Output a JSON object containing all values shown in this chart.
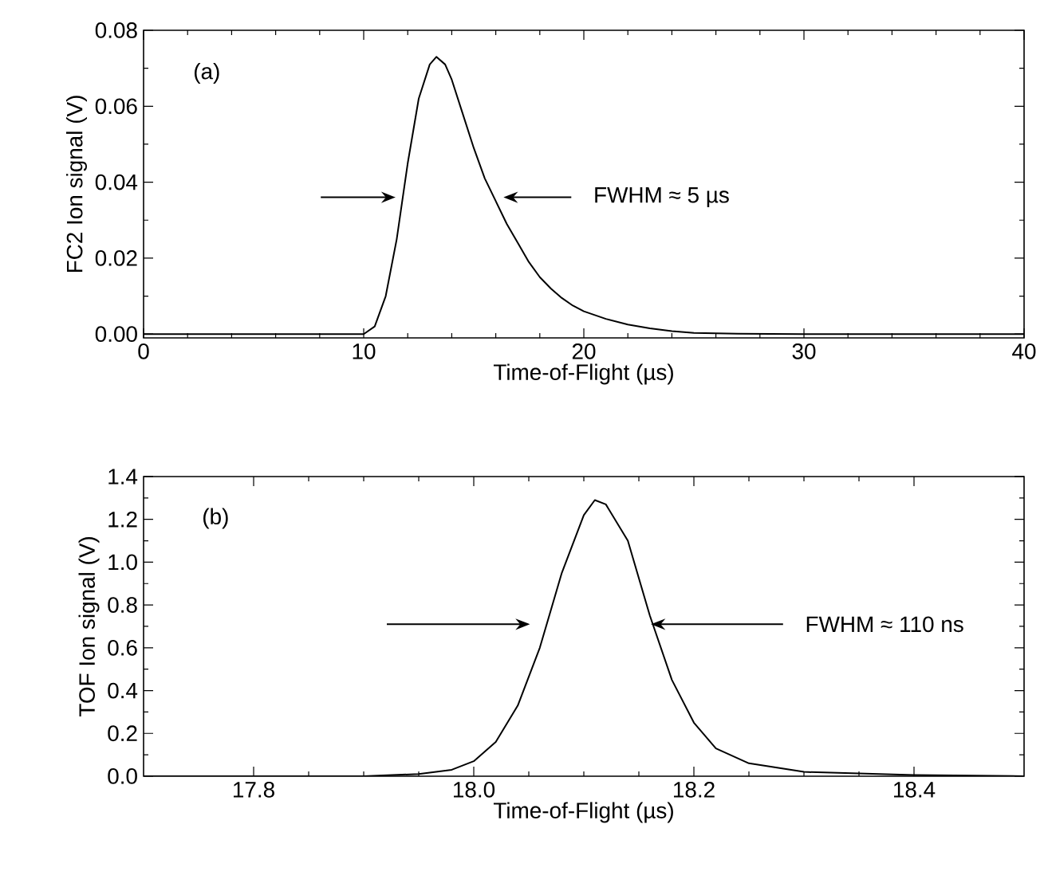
{
  "chart_data": [
    {
      "type": "line",
      "xlabel": "Time-of-Flight (µs)",
      "ylabel": "FC2 Ion signal (V)",
      "x": [
        0,
        2,
        4,
        6,
        8,
        10,
        10.5,
        11,
        11.5,
        12,
        12.5,
        13,
        13.3,
        13.7,
        14,
        14.5,
        15,
        15.5,
        16,
        16.5,
        17,
        17.5,
        18,
        18.5,
        19,
        19.5,
        20,
        21,
        22,
        23,
        24,
        25,
        27,
        30,
        35,
        40
      ],
      "series": [
        {
          "color": "#000000",
          "values": [
            0,
            0,
            0,
            0,
            0,
            0,
            0.002,
            0.01,
            0.025,
            0.045,
            0.062,
            0.071,
            0.073,
            0.071,
            0.067,
            0.058,
            0.049,
            0.041,
            0.035,
            0.029,
            0.024,
            0.019,
            0.015,
            0.012,
            0.0095,
            0.0075,
            0.006,
            0.004,
            0.0025,
            0.0015,
            0.0008,
            0.0003,
            0.0001,
            0,
            0,
            0
          ]
        }
      ],
      "xlim": [
        0,
        40
      ],
      "xticks": [
        0,
        10,
        20,
        30,
        40
      ],
      "ylim": [
        -0.001,
        0.08
      ],
      "yticks": [
        {
          "value": 0,
          "label": "0.00"
        },
        {
          "value": 0.02,
          "label": "0.02"
        },
        {
          "value": 0.04,
          "label": "0.04"
        },
        {
          "value": 0.06,
          "label": "0.06"
        },
        {
          "value": 0.08,
          "label": "0.08"
        }
      ],
      "annotations": [
        "(a)",
        "FWHM ≈ 5 µs"
      ],
      "grid": false,
      "marker": "none",
      "line_style": "solid"
    },
    {
      "type": "line",
      "xlabel": "Time-of-Flight (µs)",
      "ylabel": "TOF Ion signal (V)",
      "x": [
        17.7,
        17.8,
        17.9,
        17.95,
        17.98,
        18.0,
        18.02,
        18.04,
        18.06,
        18.08,
        18.1,
        18.11,
        18.12,
        18.14,
        18.16,
        18.18,
        18.2,
        18.22,
        18.25,
        18.3,
        18.4,
        18.5
      ],
      "series": [
        {
          "color": "#000000",
          "values": [
            0,
            0,
            0,
            0.01,
            0.03,
            0.07,
            0.16,
            0.33,
            0.6,
            0.95,
            1.22,
            1.29,
            1.27,
            1.1,
            0.75,
            0.45,
            0.25,
            0.13,
            0.06,
            0.02,
            0.005,
            0
          ]
        }
      ],
      "xlim": [
        17.7,
        18.5
      ],
      "xticks": [
        17.8,
        {
          "value": 18.0,
          "label": "18.0"
        },
        18.2,
        18.4
      ],
      "ylim": [
        0,
        1.4
      ],
      "yticks": [
        {
          "value": 0,
          "label": "0.0"
        },
        0.2,
        0.4,
        0.6,
        0.8,
        {
          "value": 1.0,
          "label": "1.0"
        },
        1.2,
        1.4
      ],
      "annotations": [
        "(b)",
        {
          "text": "FWHM ≈ 110 ns",
          "x": 18.16,
          "y": 0.71
        }
      ],
      "grid": false,
      "marker": "none",
      "line_style": "solid"
    }
  ]
}
